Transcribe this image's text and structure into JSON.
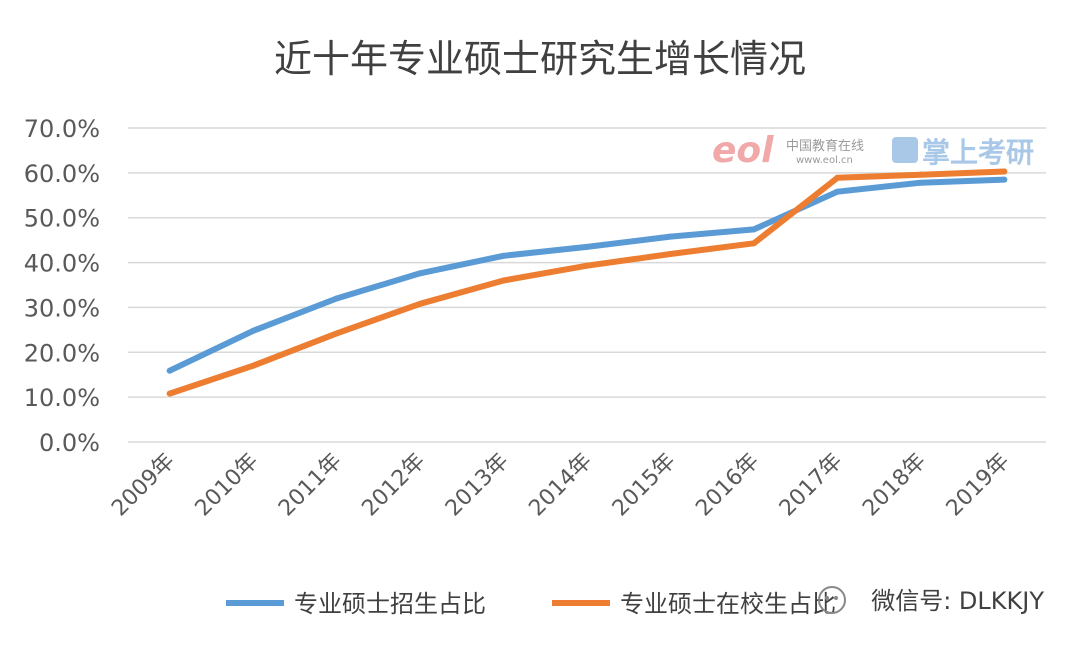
{
  "chart_data": {
    "type": "line",
    "title": "近十年专业硕士研究生增长情况",
    "categories": [
      "2009年",
      "2010年",
      "2011年",
      "2012年",
      "2013年",
      "2014年",
      "2015年",
      "2016年",
      "2017年",
      "2018年",
      "2019年"
    ],
    "ylim": [
      0,
      70
    ],
    "ytick_step": 10,
    "ytick_labels": [
      "0.0%",
      "10.0%",
      "20.0%",
      "30.0%",
      "40.0%",
      "50.0%",
      "60.0%",
      "70.0%"
    ],
    "grid": true,
    "legend_position": "bottom",
    "series": [
      {
        "name": "专业硕士招生占比",
        "color": "#5b9bd5",
        "values": [
          15.9,
          24.8,
          32.0,
          37.6,
          41.5,
          43.5,
          45.8,
          47.4,
          55.8,
          57.8,
          58.5
        ]
      },
      {
        "name": "专业硕士在校生占比",
        "color": "#ed7d31",
        "values": [
          10.8,
          17.0,
          24.2,
          30.8,
          36.0,
          39.3,
          41.9,
          44.3,
          58.9,
          59.6,
          60.3
        ]
      }
    ]
  },
  "watermark": {
    "logo_text": "eol",
    "cn_text": "中国教育在线",
    "url_text": "www.eol.cn",
    "brand_text": "掌上考研"
  },
  "wechat_tag": "微信号: DLKKJY"
}
